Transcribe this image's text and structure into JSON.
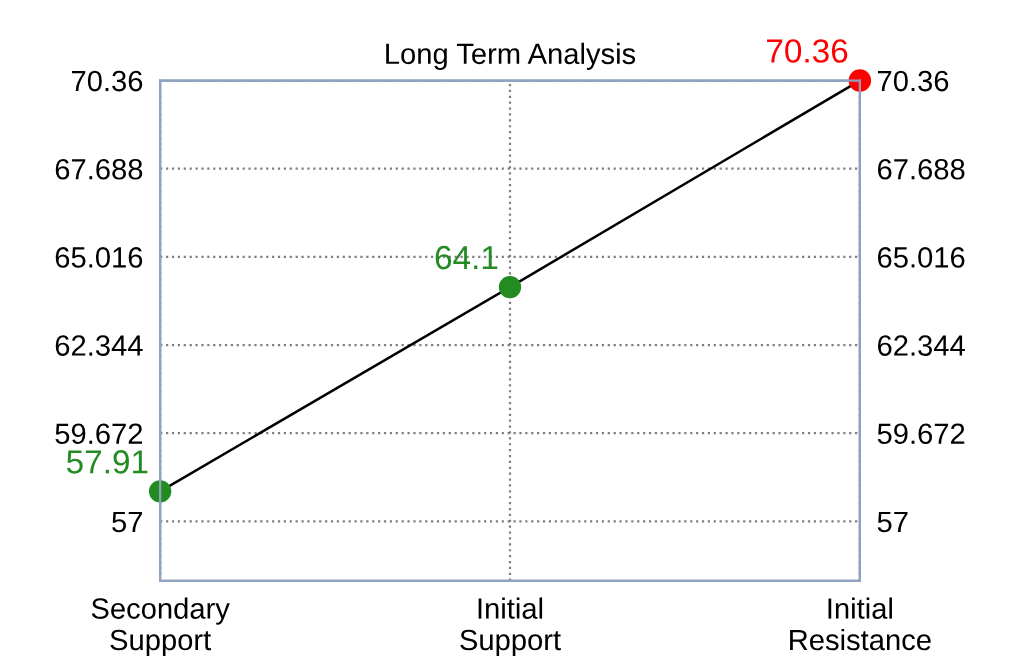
{
  "chart_data": {
    "type": "line",
    "title": "Long Term Analysis",
    "categories": [
      "Secondary\nSupport",
      "Initial\nSupport",
      "Initial\nResistance"
    ],
    "series": [
      {
        "color": "#000000",
        "colors": [
          "#228b22",
          "#228b22",
          "#ff0000"
        ],
        "values": [
          57.91,
          64.1,
          70.36
        ]
      }
    ],
    "ylim": [
      55.2,
      70.36
    ],
    "yticks": [
      57,
      59.672,
      62.344,
      65.016,
      67.688,
      70.36
    ],
    "y2lim": [
      55.2,
      70.36
    ],
    "y2ticks": [
      57,
      59.672,
      62.344,
      65.016,
      67.688,
      70.36
    ],
    "data_labels": true,
    "marker": "circle",
    "line_style": "solid",
    "grid": true
  }
}
